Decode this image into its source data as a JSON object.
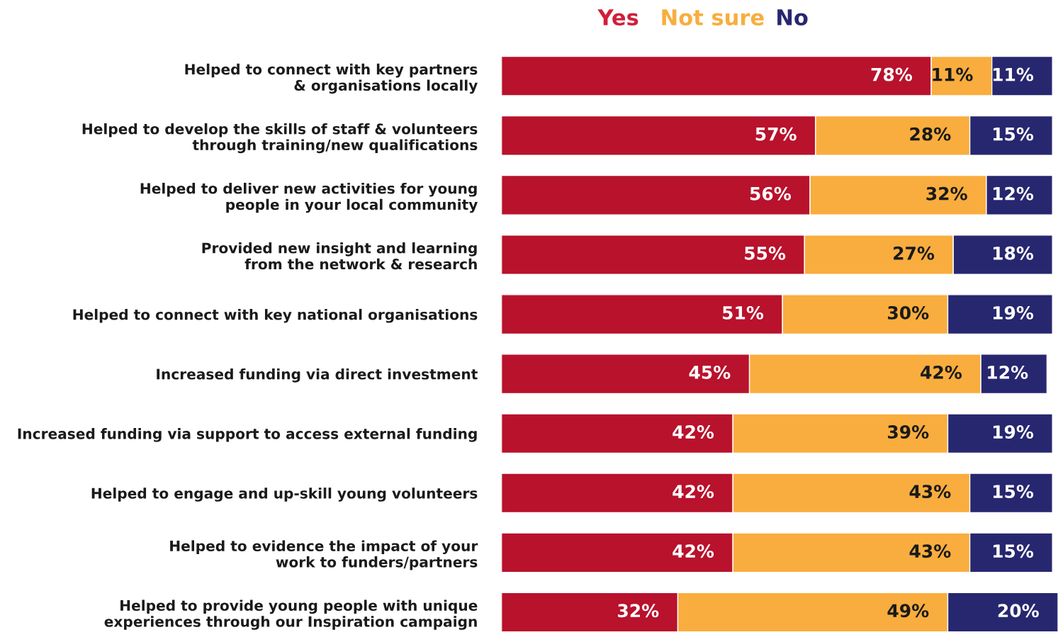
{
  "chart_data": {
    "type": "bar",
    "orientation": "horizontal",
    "stacked": true,
    "legend": "top",
    "tick_labels": "y",
    "categories": [
      "Helped to connect with key partners\n& organisations locally",
      "Helped to develop the skills of staff & volunteers\nthrough training/new qualifications",
      "Helped to deliver new activities for young\npeople in your local community",
      "Provided new insight and learning\nfrom the network & research",
      "Helped to connect with key national organisations",
      "Increased funding via direct investment",
      "Increased funding via support to access external funding",
      "Helped to engage and up-skill young volunteers",
      "Helped to evidence the impact of your\nwork to funders/partners",
      "Helped to provide young people with unique\nexperiences through our Inspiration campaign"
    ],
    "series": [
      {
        "name": "Yes",
        "color": "#b8122c",
        "values": [
          78,
          57,
          56,
          55,
          51,
          45,
          42,
          42,
          42,
          32
        ],
        "value_labels": [
          "78%",
          "57%",
          "56%",
          "55%",
          "51%",
          "45%",
          "42%",
          "42%",
          "42%",
          "32%"
        ]
      },
      {
        "name": "Not sure",
        "color": "#f9ad3e",
        "values": [
          11,
          28,
          32,
          27,
          30,
          42,
          39,
          43,
          43,
          49
        ],
        "value_labels": [
          "11%",
          "28%",
          "32%",
          "27%",
          "30%",
          "42%",
          "39%",
          "43%",
          "43%",
          "49%"
        ]
      },
      {
        "name": "No",
        "color": "#272770",
        "values": [
          11,
          15,
          12,
          18,
          19,
          12,
          19,
          15,
          15,
          20
        ],
        "value_labels": [
          "11%",
          "15%",
          "12%",
          "18%",
          "19%",
          "12%",
          "19%",
          "15%",
          "15%",
          "20%"
        ]
      }
    ]
  }
}
